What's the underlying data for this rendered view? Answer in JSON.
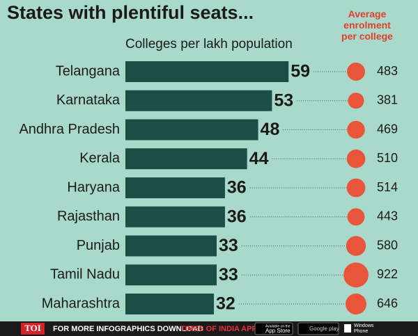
{
  "chart_data": {
    "type": "bar",
    "title": "States with plentiful seats...",
    "categories": [
      "Telangana",
      "Karnataka",
      "Andhra Pradesh",
      "Kerala",
      "Haryana",
      "Rajasthan",
      "Punjab",
      "Tamil Nadu",
      "Maharashtra"
    ],
    "series": [
      {
        "name": "Colleges per lakh population",
        "color": "#1d4d47",
        "values": [
          59,
          53,
          48,
          44,
          36,
          36,
          33,
          33,
          32
        ]
      },
      {
        "name": "Average enrolment per college",
        "color": "#e8553a",
        "values": [
          483,
          381,
          469,
          510,
          514,
          443,
          580,
          922,
          646
        ]
      }
    ]
  },
  "footer": {
    "brand": "TOI",
    "text": "FOR MORE INFOGRAPHICS DOWNLOAD",
    "app": "TIMES OF INDIA APP",
    "store1": [
      "Available on the",
      "App Store"
    ],
    "store2": "Google play",
    "store3": [
      "Windows",
      "Phone"
    ]
  }
}
